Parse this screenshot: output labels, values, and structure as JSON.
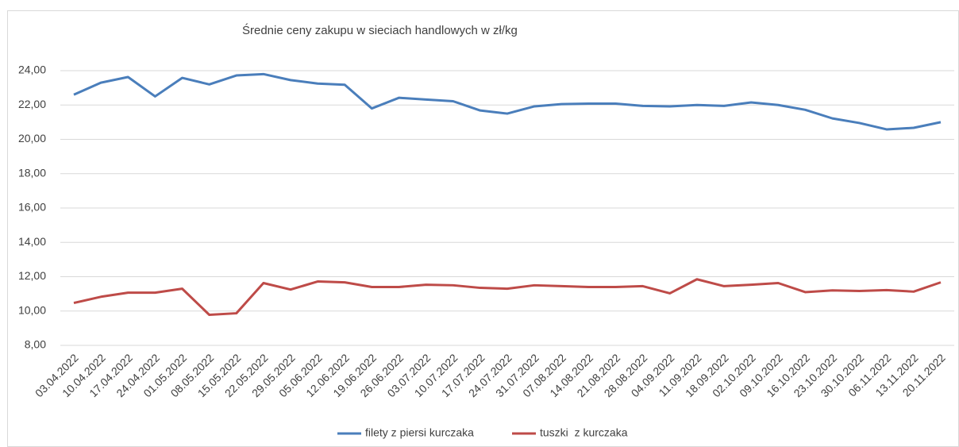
{
  "chart_data": {
    "type": "line",
    "title": "Średnie ceny zakupu w sieciach handlowych w zł/kg",
    "categories": [
      "03.04.2022",
      "10.04.2022",
      "17.04.2022",
      "24.04.2022",
      "01.05.2022",
      "08.05.2022",
      "15.05.2022",
      "22.05.2022",
      "29.05.2022",
      "05.06.2022",
      "12.06.2022",
      "19.06.2022",
      "26.06.2022",
      "03.07.2022",
      "10.07.2022",
      "17.07.2022",
      "24.07.2022",
      "31.07.2022",
      "07.08.2022",
      "14.08.2022",
      "21.08.2022",
      "28.08.2022",
      "04.09.2022",
      "11.09.2022",
      "18.09.2022",
      "02.10.2022",
      "09.10.2022",
      "16.10.2022",
      "23.10.2022",
      "30.10.2022",
      "06.11.2022",
      "13.11.2022",
      "20.11.2022"
    ],
    "series": [
      {
        "name": "filety z piersi kurczaka",
        "color": "#4a7ebb",
        "values": [
          22.6,
          23.3,
          23.63,
          22.5,
          23.58,
          23.2,
          23.72,
          23.8,
          23.45,
          23.25,
          23.18,
          21.8,
          22.42,
          22.32,
          22.22,
          21.68,
          21.5,
          21.92,
          22.05,
          22.08,
          22.08,
          21.95,
          21.92,
          22.0,
          21.95,
          22.15,
          22.0,
          21.72,
          21.22,
          20.95,
          20.58,
          20.67,
          21.0
        ]
      },
      {
        "name": "tuszki  z kurczaka",
        "color": "#be4b48",
        "values": [
          10.47,
          10.83,
          11.07,
          11.07,
          11.3,
          9.78,
          9.87,
          11.63,
          11.25,
          11.72,
          11.67,
          11.4,
          11.4,
          11.53,
          11.5,
          11.35,
          11.3,
          11.5,
          11.45,
          11.4,
          11.4,
          11.45,
          11.03,
          11.85,
          11.45,
          11.53,
          11.63,
          11.1,
          11.2,
          11.17,
          11.22,
          11.13,
          11.67
        ]
      }
    ],
    "ylim": [
      8,
      24
    ],
    "yticks": [
      {
        "value": 8,
        "label": "8,00"
      },
      {
        "value": 10,
        "label": "10,00"
      },
      {
        "value": 12,
        "label": "12,00"
      },
      {
        "value": 14,
        "label": "14,00"
      },
      {
        "value": 16,
        "label": "16,00"
      },
      {
        "value": 18,
        "label": "18,00"
      },
      {
        "value": 20,
        "label": "20,00"
      },
      {
        "value": 22,
        "label": "22,00"
      },
      {
        "value": 24,
        "label": "24,00"
      }
    ],
    "grid": true,
    "legend": "bottom"
  }
}
